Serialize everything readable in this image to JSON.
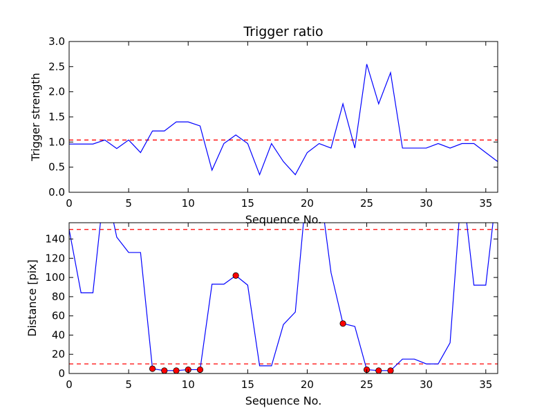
{
  "chart_data": [
    {
      "type": "line",
      "title": "Trigger ratio",
      "xlabel": "Sequence No.",
      "ylabel": "Trigger strength",
      "xlim": [
        0,
        36
      ],
      "ylim": [
        0,
        3.0
      ],
      "xticks": [
        "0",
        "5",
        "10",
        "15",
        "20",
        "25",
        "30",
        "35"
      ],
      "yticks": [
        "0.0",
        "0.5",
        "1.0",
        "1.5",
        "2.0",
        "2.5",
        "3.0"
      ],
      "grid": false,
      "series_color": "#0000ff",
      "threshold_color": "#ff0000",
      "series": [
        {
          "x": [
            0,
            1,
            2,
            3,
            4,
            5,
            6,
            7,
            8,
            9,
            10,
            11,
            12,
            13,
            14,
            15,
            16,
            17,
            18,
            19,
            20,
            21,
            22,
            23,
            24,
            25,
            26,
            27,
            28,
            29,
            30,
            31,
            32,
            33,
            34,
            35,
            36
          ],
          "values": [
            0.96,
            0.96,
            0.96,
            1.04,
            0.87,
            1.04,
            0.79,
            1.22,
            1.22,
            1.4,
            1.4,
            1.32,
            0.44,
            0.97,
            1.14,
            0.97,
            0.35,
            0.97,
            0.61,
            0.35,
            0.79,
            0.97,
            0.88,
            1.76,
            0.88,
            2.55,
            1.76,
            2.38,
            0.88,
            0.88,
            0.88,
            0.97,
            0.88,
            0.97,
            0.97,
            0.79,
            0.61
          ]
        }
      ],
      "thresholds": [
        1.04
      ]
    },
    {
      "type": "line",
      "title": "",
      "xlabel": "Sequence No.",
      "ylabel": "Distance [pix]",
      "xlim": [
        0,
        36
      ],
      "ylim": [
        0,
        157
      ],
      "xticks": [
        "0",
        "5",
        "10",
        "15",
        "20",
        "25",
        "30",
        "35"
      ],
      "yticks": [
        "0",
        "20",
        "40",
        "60",
        "80",
        "100",
        "120",
        "140"
      ],
      "grid": false,
      "series_color": "#0000ff",
      "marker_color": "#ff0000",
      "threshold_color": "#ff0000",
      "series": [
        {
          "x": [
            0,
            1,
            2,
            3,
            4,
            5,
            6,
            7,
            8,
            9,
            10,
            11,
            12,
            13,
            14,
            15,
            16,
            17,
            18,
            19,
            20,
            21,
            22,
            23,
            24,
            25,
            26,
            27,
            28,
            29,
            30,
            31,
            32,
            33,
            34,
            35,
            36
          ],
          "values": [
            150,
            84,
            84,
            200,
            142,
            126,
            126,
            5,
            3,
            3,
            4,
            4,
            93,
            93,
            102,
            92,
            8,
            8,
            51,
            64,
            200,
            200,
            105,
            52,
            49,
            4,
            3,
            3,
            15,
            15,
            10,
            10,
            32,
            200,
            92,
            92,
            200
          ]
        }
      ],
      "markers": {
        "x": [
          7,
          8,
          9,
          10,
          11,
          14,
          23,
          25,
          26,
          27
        ],
        "values": [
          5,
          3,
          3,
          4,
          4,
          102,
          52,
          4,
          3,
          3
        ]
      },
      "thresholds": [
        150,
        10
      ]
    }
  ]
}
